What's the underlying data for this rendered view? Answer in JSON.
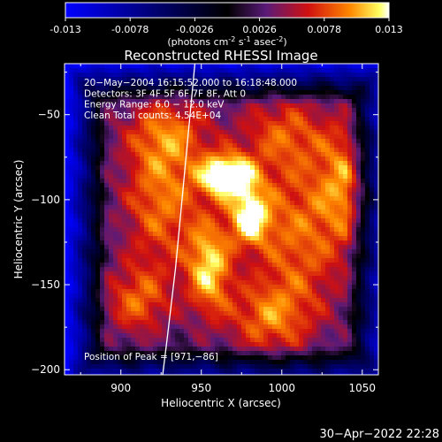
{
  "colorbar": {
    "ticks": [
      "-0.013",
      "-0.0078",
      "-0.0026",
      "0.0026",
      "0.0078",
      "0.013"
    ],
    "unit_prefix": "(photons cm",
    "unit_exp1": "-2",
    "unit_mid": " s",
    "unit_exp2": "-1",
    "unit_mid2": " asec",
    "unit_exp3": "-2",
    "unit_suffix": ")",
    "min": -0.013,
    "max": 0.013
  },
  "chart_data": {
    "type": "heatmap",
    "title": "Reconstructed RHESSI Image",
    "xlabel": "Heliocentric X (arcsec)",
    "ylabel": "Heliocentric Y (arcsec)",
    "xlim": [
      865,
      1060
    ],
    "ylim": [
      -203,
      -20
    ],
    "x_ticks": [
      900,
      950,
      1000,
      1050
    ],
    "y_ticks": [
      -50,
      -100,
      -150,
      -200
    ],
    "x_tick_labels": [
      "900",
      "950",
      "1000",
      "1050"
    ],
    "y_tick_labels": [
      "−50",
      "−100",
      "−150",
      "−200"
    ],
    "colormap": [
      "#0000ff",
      "#000000",
      "#5a1a78",
      "#d01010",
      "#ff8800",
      "#ffff60",
      "#ffffff"
    ],
    "peak": [
      971,
      -86
    ],
    "limb_points": [
      [
        946,
        -20
      ],
      [
        942,
        -60
      ],
      [
        938,
        -100
      ],
      [
        934,
        -140
      ],
      [
        929,
        -180
      ],
      [
        926,
        -203
      ]
    ],
    "sources": [
      {
        "x": 966,
        "y": -86,
        "intensity": 0.013,
        "sx": 12,
        "sy": 9
      },
      {
        "x": 980,
        "y": -110,
        "intensity": 0.0095,
        "sx": 9,
        "sy": 12
      },
      {
        "x": 955,
        "y": -140,
        "intensity": 0.009,
        "sx": 10,
        "sy": 20
      },
      {
        "x": 925,
        "y": -100,
        "intensity": 0.007,
        "sx": 18,
        "sy": 30
      },
      {
        "x": 1010,
        "y": -120,
        "intensity": 0.0065,
        "sx": 22,
        "sy": 40
      },
      {
        "x": 1040,
        "y": -90,
        "intensity": 0.006,
        "sx": 12,
        "sy": 25
      },
      {
        "x": 910,
        "y": -160,
        "intensity": 0.006,
        "sx": 15,
        "sy": 15
      },
      {
        "x": 990,
        "y": -170,
        "intensity": 0.0055,
        "sx": 18,
        "sy": 15
      },
      {
        "x": 930,
        "y": -60,
        "intensity": 0.005,
        "sx": 20,
        "sy": 15
      },
      {
        "x": 1000,
        "y": -60,
        "intensity": 0.0045,
        "sx": 20,
        "sy": 15
      }
    ],
    "info_lines": [
      "20−May−2004 16:15:52.000 to 16:18:48.000",
      "Detectors: 3F 4F 5F 6F 7F 8F, Att 0",
      "Energy Range: 6.0 − 12.0 keV",
      "Clean    Total counts: 4.54E+04"
    ],
    "peak_label": "Position of Peak = [971,−86]"
  },
  "timestamp": "30−Apr−2022 22:28"
}
